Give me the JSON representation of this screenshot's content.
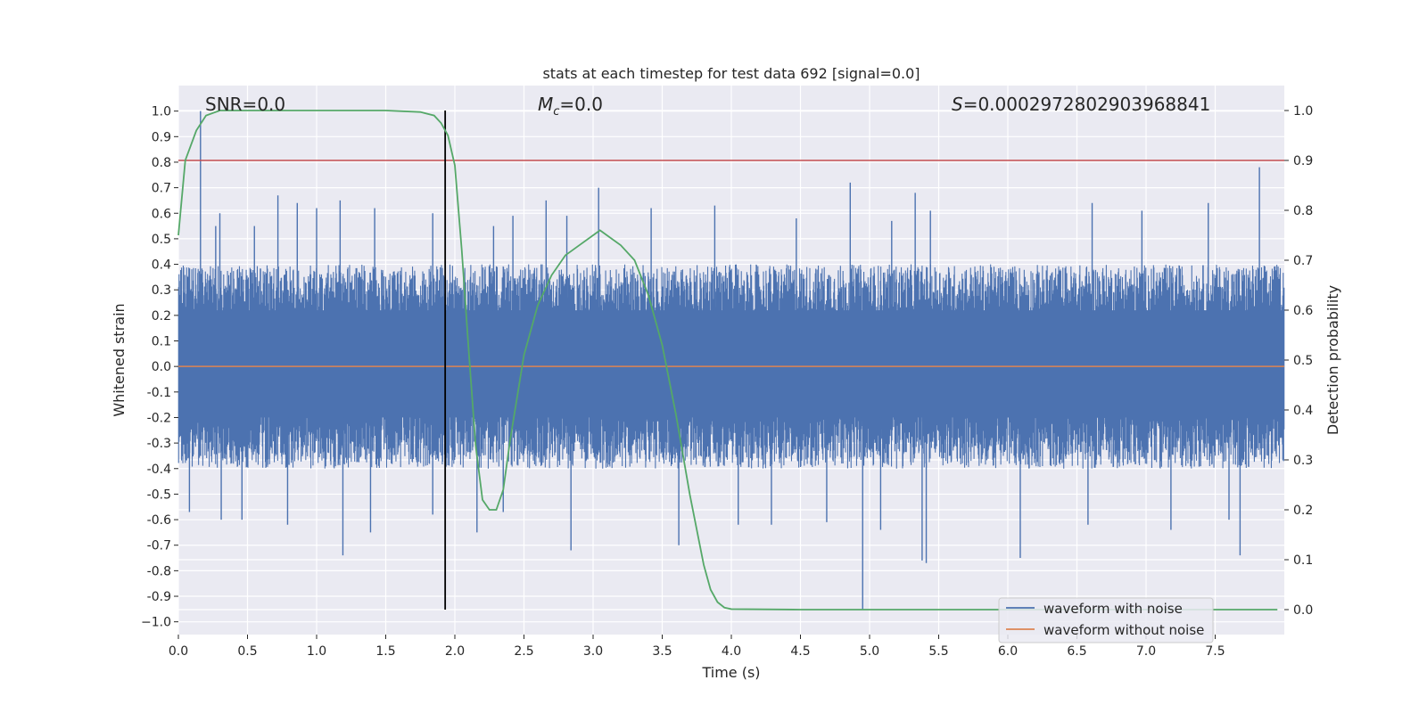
{
  "chart_data": {
    "type": "line",
    "title": "stats at each timestep for test data 692 [signal=0.0]",
    "xlabel": "Time (s)",
    "ylabel": "Whitened strain",
    "y2label": "Detection probability",
    "xlim": [
      0.0,
      8.0
    ],
    "ylim": [
      -1.05,
      1.1
    ],
    "y2lim": [
      -0.05,
      1.05
    ],
    "grid": true,
    "legend_position": "lower-right",
    "x_ticks": [
      "0.0",
      "0.5",
      "1.0",
      "1.5",
      "2.0",
      "2.5",
      "3.0",
      "3.5",
      "4.0",
      "4.5",
      "5.0",
      "5.5",
      "6.0",
      "6.5",
      "7.0",
      "7.5"
    ],
    "y_ticks": [
      "1.0",
      "0.9",
      "0.8",
      "0.7",
      "0.6",
      "0.5",
      "0.4",
      "0.3",
      "0.2",
      "0.1",
      "0.0",
      "-0.1",
      "-0.2",
      "-0.3",
      "-0.4",
      "-0.5",
      "-0.6",
      "-0.7",
      "-0.8",
      "-0.9",
      "−1.0"
    ],
    "y2_ticks": [
      "1.0",
      "0.9",
      "0.8",
      "0.7",
      "0.6",
      "0.5",
      "0.4",
      "0.3",
      "0.2",
      "0.1",
      "0.0"
    ],
    "annotations": {
      "snr_prefix": "SNR=",
      "snr_value": "0.0",
      "mc_symbol": "M",
      "mc_subscript": "c",
      "mc_value": "=0.0",
      "s_symbol": "S",
      "s_value": "=0.0002972802903968841"
    },
    "threshold_line": {
      "y2": 0.9,
      "color": "#c44e52"
    },
    "event_marker": {
      "x": 1.93,
      "color": "#000000"
    },
    "series": [
      {
        "name": "waveform with noise",
        "color": "#4c72b0",
        "axis": "left",
        "noise_band": [
          -0.4,
          0.4
        ],
        "spikes_up": [
          [
            0.16,
            1.0
          ],
          [
            0.27,
            0.55
          ],
          [
            0.3,
            0.6
          ],
          [
            0.55,
            0.55
          ],
          [
            0.72,
            0.67
          ],
          [
            0.86,
            0.64
          ],
          [
            1.0,
            0.62
          ],
          [
            1.17,
            0.65
          ],
          [
            1.42,
            0.62
          ],
          [
            1.84,
            0.6
          ],
          [
            2.28,
            0.55
          ],
          [
            2.42,
            0.59
          ],
          [
            2.66,
            0.65
          ],
          [
            2.81,
            0.59
          ],
          [
            3.04,
            0.7
          ],
          [
            3.42,
            0.62
          ],
          [
            3.88,
            0.63
          ],
          [
            4.47,
            0.58
          ],
          [
            4.86,
            0.72
          ],
          [
            5.16,
            0.57
          ],
          [
            5.33,
            0.68
          ],
          [
            5.44,
            0.61
          ],
          [
            6.61,
            0.64
          ],
          [
            6.97,
            0.61
          ],
          [
            7.45,
            0.64
          ],
          [
            7.82,
            0.78
          ]
        ],
        "spikes_down": [
          [
            0.08,
            -0.57
          ],
          [
            0.31,
            -0.6
          ],
          [
            0.46,
            -0.6
          ],
          [
            0.79,
            -0.62
          ],
          [
            1.19,
            -0.74
          ],
          [
            1.39,
            -0.65
          ],
          [
            1.84,
            -0.58
          ],
          [
            2.16,
            -0.65
          ],
          [
            2.35,
            -0.57
          ],
          [
            2.84,
            -0.72
          ],
          [
            3.62,
            -0.7
          ],
          [
            4.05,
            -0.62
          ],
          [
            4.29,
            -0.62
          ],
          [
            4.69,
            -0.61
          ],
          [
            4.95,
            -0.95
          ],
          [
            5.08,
            -0.64
          ],
          [
            5.38,
            -0.76
          ],
          [
            5.41,
            -0.77
          ],
          [
            6.09,
            -0.75
          ],
          [
            6.58,
            -0.62
          ],
          [
            7.18,
            -0.64
          ],
          [
            7.6,
            -0.6
          ],
          [
            7.68,
            -0.74
          ]
        ]
      },
      {
        "name": "waveform without noise",
        "color": "#dd8452",
        "axis": "left",
        "x": [
          0.0,
          8.0
        ],
        "y": [
          0.0,
          0.0
        ]
      },
      {
        "name": "detection probability",
        "color": "#55a868",
        "axis": "right",
        "x": [
          0.0,
          0.05,
          0.13,
          0.2,
          0.3,
          0.5,
          1.0,
          1.5,
          1.75,
          1.85,
          1.9,
          1.95,
          2.0,
          2.05,
          2.1,
          2.15,
          2.2,
          2.25,
          2.3,
          2.35,
          2.4,
          2.5,
          2.6,
          2.7,
          2.8,
          2.9,
          3.0,
          3.05,
          3.1,
          3.2,
          3.3,
          3.4,
          3.5,
          3.6,
          3.7,
          3.8,
          3.85,
          3.9,
          3.95,
          4.0,
          4.5,
          5.0,
          6.0,
          7.0,
          7.5,
          7.95
        ],
        "y": [
          0.75,
          0.9,
          0.96,
          0.99,
          1.0,
          1.0,
          1.0,
          1.0,
          0.997,
          0.99,
          0.975,
          0.95,
          0.89,
          0.72,
          0.52,
          0.33,
          0.22,
          0.2,
          0.2,
          0.24,
          0.34,
          0.51,
          0.61,
          0.67,
          0.71,
          0.73,
          0.75,
          0.76,
          0.75,
          0.73,
          0.7,
          0.63,
          0.53,
          0.39,
          0.23,
          0.09,
          0.04,
          0.015,
          0.004,
          0.001,
          0.0,
          0.0,
          0.0,
          0.0,
          0.0,
          0.0
        ]
      }
    ]
  }
}
